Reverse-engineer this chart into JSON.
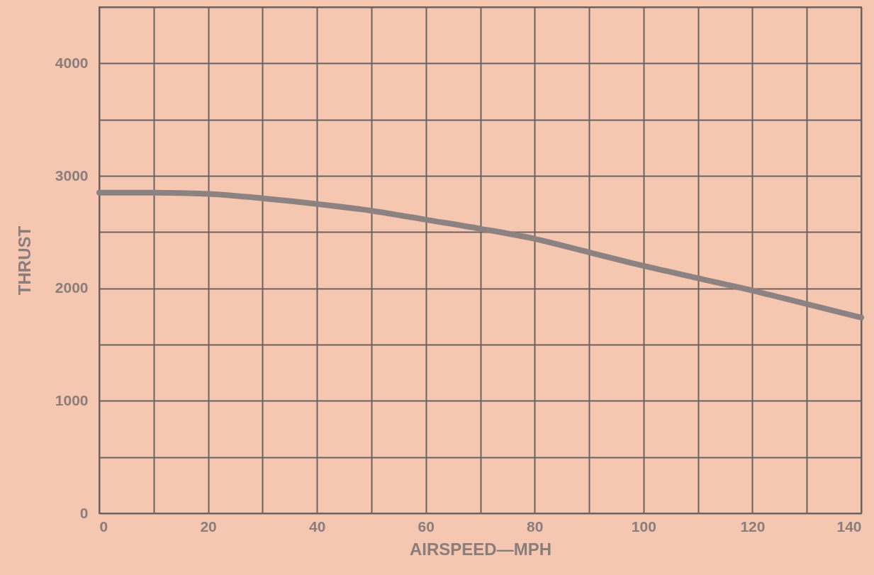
{
  "chart_data": {
    "type": "line",
    "xlabel": "AIRSPEED—MPH",
    "ylabel": "THRUST",
    "x": [
      0,
      10,
      20,
      30,
      40,
      50,
      60,
      70,
      80,
      90,
      100,
      110,
      120,
      130,
      140
    ],
    "series": [
      {
        "color": "#8c8282",
        "values": [
          2850,
          2850,
          2840,
          2800,
          2750,
          2690,
          2610,
          2530,
          2440,
          2320,
          2200,
          2090,
          1980,
          1860,
          1740
        ]
      }
    ],
    "xlim": [
      0,
      140
    ],
    "xticks": [
      0,
      {
        "value": 10,
        "label": null
      },
      20,
      {
        "value": 30,
        "label": null
      },
      40,
      {
        "value": 50,
        "label": null
      },
      60,
      {
        "value": 70,
        "label": null
      },
      80,
      {
        "value": 90,
        "label": null
      },
      100,
      {
        "value": 110,
        "label": null
      },
      120,
      {
        "value": 130,
        "label": null
      },
      140
    ],
    "ylim": [
      0,
      4500
    ],
    "yticks": [
      0,
      {
        "value": 500,
        "label": null
      },
      1000,
      {
        "value": 1500,
        "label": null
      },
      2000,
      {
        "value": 2500,
        "label": null
      },
      3000,
      {
        "value": 3500,
        "label": null
      },
      4000,
      {
        "value": 4500,
        "label": null
      }
    ],
    "grid": true
  }
}
